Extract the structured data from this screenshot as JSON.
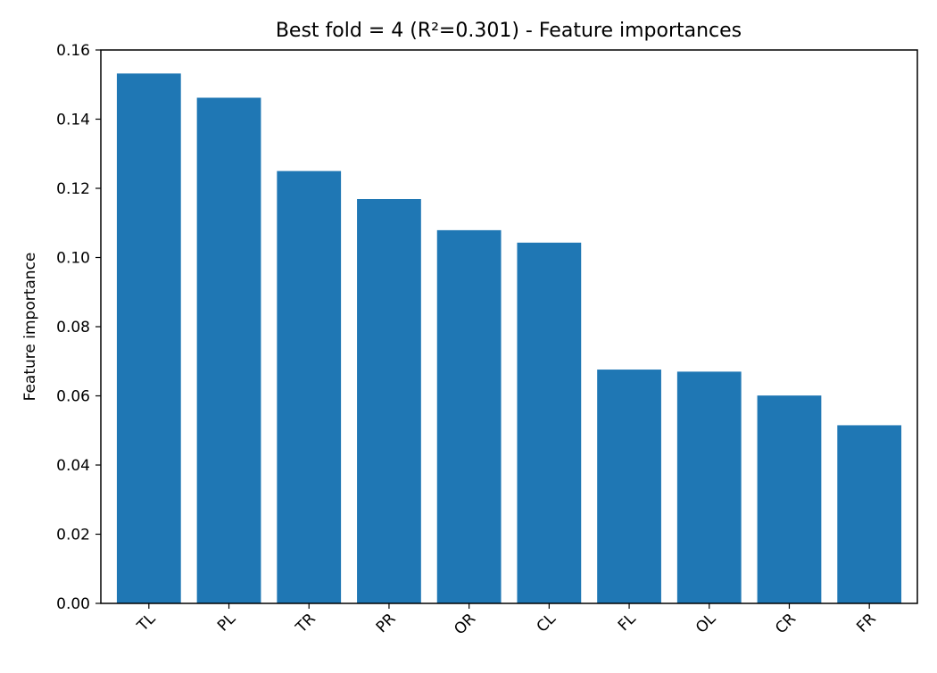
{
  "chart_data": {
    "type": "bar",
    "title": "Best fold = 4 (R²=0.301) - Feature importances",
    "xlabel": "",
    "ylabel": "Feature importance",
    "categories": [
      "TL",
      "PL",
      "TR",
      "PR",
      "OR",
      "CL",
      "FL",
      "OL",
      "CR",
      "FR"
    ],
    "values": [
      0.1532,
      0.1462,
      0.125,
      0.1169,
      0.1079,
      0.1043,
      0.0676,
      0.067,
      0.0601,
      0.0515
    ],
    "ylim": [
      0,
      0.16
    ],
    "yticks": [
      "0.00",
      "0.02",
      "0.04",
      "0.06",
      "0.08",
      "0.10",
      "0.12",
      "0.14",
      "0.16"
    ],
    "bar_color": "#1f77b4",
    "grid": false,
    "legend": false,
    "xtick_rotation": 45
  }
}
